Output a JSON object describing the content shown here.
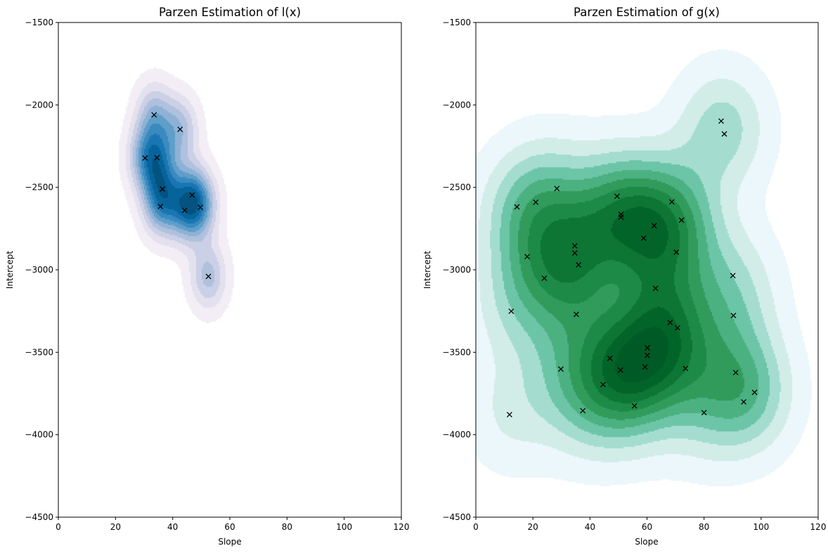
{
  "chart_data": [
    {
      "type": "contour",
      "title": "Parzen Estimation of l(x)",
      "xlabel": "Slope",
      "ylabel": "Intercept",
      "xlim": [
        0,
        120
      ],
      "ylim": [
        -4500,
        -1500
      ],
      "xticks": [
        "0",
        "20",
        "40",
        "60",
        "80",
        "100",
        "120"
      ],
      "yticks": [
        "−1500",
        "−2000",
        "−2500",
        "−3000",
        "−3500",
        "−4000",
        "−4500"
      ],
      "xtick_values": [
        0,
        20,
        40,
        60,
        80,
        100,
        120
      ],
      "ytick_values": [
        -1500,
        -2000,
        -2500,
        -3000,
        -3500,
        -4000,
        -4500
      ],
      "colormap": [
        "#f3eef6",
        "#e4e1ef",
        "#ccd0e6",
        "#b0c1dd",
        "#8db2d5",
        "#5f9ec9",
        "#3a8abf",
        "#1a76b3",
        "#07649b",
        "#045280"
      ],
      "bandwidth": [
        4.5,
        140
      ],
      "marker": "x",
      "marker_color": "#000000",
      "points": [
        {
          "x": 33.5,
          "y": -2060
        },
        {
          "x": 42.6,
          "y": -2148
        },
        {
          "x": 30.3,
          "y": -2322
        },
        {
          "x": 34.5,
          "y": -2320
        },
        {
          "x": 36.4,
          "y": -2510
        },
        {
          "x": 46.8,
          "y": -2547
        },
        {
          "x": 35.7,
          "y": -2616
        },
        {
          "x": 44.2,
          "y": -2639
        },
        {
          "x": 49.7,
          "y": -2621
        },
        {
          "x": 52.5,
          "y": -3040
        }
      ]
    },
    {
      "type": "contour",
      "title": "Parzen Estimation of g(x)",
      "xlabel": "Slope",
      "ylabel": "Intercept",
      "xlim": [
        0,
        120
      ],
      "ylim": [
        -4500,
        -1500
      ],
      "xticks": [
        "0",
        "20",
        "40",
        "60",
        "80",
        "100",
        "120"
      ],
      "yticks": [
        "−1500",
        "−2000",
        "−2500",
        "−3000",
        "−3500",
        "−4000",
        "−4500"
      ],
      "xtick_values": [
        0,
        20,
        40,
        60,
        80,
        100,
        120
      ],
      "ytick_values": [
        -1500,
        -2000,
        -2500,
        -3000,
        -3500,
        -4000,
        -4500
      ],
      "colormap": [
        "#ebf7fa",
        "#d2ede8",
        "#a4ddd0",
        "#6dc5a8",
        "#4bb181",
        "#319b5c",
        "#1d8a47",
        "#0d7634",
        "#03642a",
        "#005a25"
      ],
      "bandwidth": [
        11,
        250
      ],
      "marker": "x",
      "marker_color": "#000000",
      "points": [
        {
          "x": 28.4,
          "y": -2507
        },
        {
          "x": 21.0,
          "y": -2590
        },
        {
          "x": 14.4,
          "y": -2618
        },
        {
          "x": 34.7,
          "y": -2855
        },
        {
          "x": 34.7,
          "y": -2898
        },
        {
          "x": 36.0,
          "y": -2970
        },
        {
          "x": 18.0,
          "y": -2920
        },
        {
          "x": 24.0,
          "y": -3051
        },
        {
          "x": 12.4,
          "y": -3251
        },
        {
          "x": 35.2,
          "y": -3270
        },
        {
          "x": 49.5,
          "y": -2554
        },
        {
          "x": 50.9,
          "y": -2663
        },
        {
          "x": 50.9,
          "y": -2680
        },
        {
          "x": 68.7,
          "y": -2588
        },
        {
          "x": 72.1,
          "y": -2699
        },
        {
          "x": 62.5,
          "y": -2732
        },
        {
          "x": 58.8,
          "y": -2808
        },
        {
          "x": 70.3,
          "y": -2893
        },
        {
          "x": 63.0,
          "y": -3112
        },
        {
          "x": 68.1,
          "y": -3320
        },
        {
          "x": 70.7,
          "y": -3352
        },
        {
          "x": 60.1,
          "y": -3473
        },
        {
          "x": 60.1,
          "y": -3519
        },
        {
          "x": 47.0,
          "y": -3537
        },
        {
          "x": 59.3,
          "y": -3589
        },
        {
          "x": 50.7,
          "y": -3608
        },
        {
          "x": 73.5,
          "y": -3598
        },
        {
          "x": 44.6,
          "y": -3696
        },
        {
          "x": 55.6,
          "y": -3825
        },
        {
          "x": 29.8,
          "y": -3602
        },
        {
          "x": 11.8,
          "y": -3878
        },
        {
          "x": 37.5,
          "y": -3854
        },
        {
          "x": 86.0,
          "y": -2098
        },
        {
          "x": 87.1,
          "y": -2176
        },
        {
          "x": 90.1,
          "y": -3035
        },
        {
          "x": 90.3,
          "y": -3277
        },
        {
          "x": 91.1,
          "y": -3623
        },
        {
          "x": 97.7,
          "y": -3743
        },
        {
          "x": 93.9,
          "y": -3801
        },
        {
          "x": 80.0,
          "y": -3866
        }
      ]
    }
  ]
}
